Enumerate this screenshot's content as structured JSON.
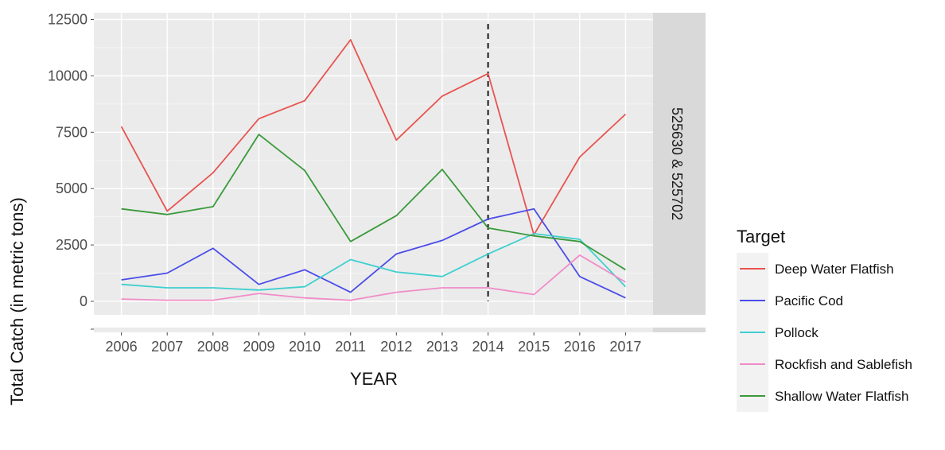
{
  "chart_data": {
    "type": "line",
    "xlabel": "YEAR",
    "ylabel": "Total Catch (in metric tons)",
    "facet_label": "525630 & 525702",
    "x": [
      2006,
      2007,
      2008,
      2009,
      2010,
      2011,
      2012,
      2013,
      2014,
      2015,
      2016,
      2017
    ],
    "x_tick_labels": [
      "2006",
      "2007",
      "2008",
      "2009",
      "2010",
      "2011",
      "2012",
      "2013",
      "2014",
      "2015",
      "2016",
      "2017"
    ],
    "ylim": [
      -600,
      12800
    ],
    "y_ticks": [
      0,
      2500,
      5000,
      7500,
      10000,
      12500
    ],
    "y_tick_labels": [
      "0",
      "2500",
      "5000",
      "7500",
      "10000",
      "12500"
    ],
    "vline_x": 2014,
    "grid": true,
    "legend": {
      "title": "Target",
      "position": "right",
      "entries": [
        "Deep Water Flatfish",
        "Pacific Cod",
        "Pollock",
        "Rockfish and Sablefish",
        "Shallow Water Flatfish"
      ]
    },
    "series": [
      {
        "name": "Deep Water Flatfish",
        "color": "#e8534f",
        "values": [
          7750,
          4000,
          5700,
          8100,
          8900,
          11600,
          7150,
          9100,
          10100,
          2950,
          6400,
          8300
        ]
      },
      {
        "name": "Pacific Cod",
        "color": "#4a4de8",
        "values": [
          950,
          1250,
          2350,
          750,
          1400,
          400,
          2100,
          2700,
          3650,
          4100,
          1100,
          150
        ]
      },
      {
        "name": "Pollock",
        "color": "#3fcfcf",
        "values": [
          750,
          600,
          600,
          500,
          650,
          1850,
          1300,
          1100,
          2100,
          3000,
          2750,
          650
        ]
      },
      {
        "name": "Rockfish and Sablefish",
        "color": "#f08cc8",
        "values": [
          100,
          50,
          50,
          350,
          150,
          50,
          400,
          600,
          600,
          300,
          2050,
          850
        ]
      },
      {
        "name": "Shallow Water Flatfish",
        "color": "#3a9a3a",
        "values": [
          4100,
          3850,
          4200,
          7400,
          5800,
          2650,
          3800,
          5850,
          3250,
          2900,
          2650,
          1400
        ]
      }
    ]
  }
}
